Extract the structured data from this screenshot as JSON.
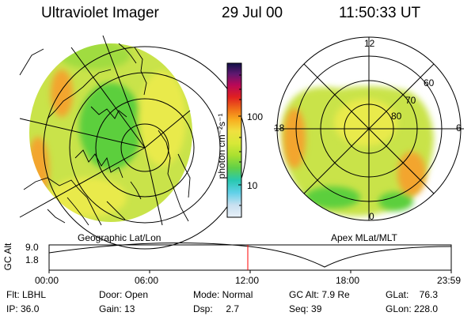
{
  "header": {
    "title": "Ultraviolet Imager",
    "date": "29 Jul 00",
    "time": "11:50:33 UT"
  },
  "left_panel": {
    "caption": "Geographic Lat/Lon"
  },
  "right_panel": {
    "caption": "Apex MLat/MLT",
    "mlt_labels": {
      "top": "12",
      "left": "18",
      "right": "6",
      "bottom": "0"
    },
    "lat_labels": [
      "60",
      "70",
      "80"
    ]
  },
  "colorbar": {
    "unit_label": "photon cm⁻²s⁻¹",
    "tick_labels": [
      "100",
      "10"
    ],
    "colors": [
      "#e8f0f8",
      "#c8e0f0",
      "#60d0e8",
      "#28c8b0",
      "#60d048",
      "#a8e030",
      "#d8e838",
      "#f0e040",
      "#f8b020",
      "#f07018",
      "#e02020",
      "#b80858",
      "#601870",
      "#101048"
    ]
  },
  "altitude_plot": {
    "ylabel": "GC Alt",
    "yticks": [
      "9.0",
      "1.8"
    ],
    "xticks": [
      "00:00",
      "06:00",
      "12:00",
      "18:00",
      "23:59"
    ],
    "marker_color": "#ff0000"
  },
  "info": {
    "flt": "Flt: LBHL",
    "ip": "IP: 36.0",
    "door": "Door: Open",
    "gain": "Gain: 13",
    "mode": "Mode: Normal",
    "dsp": "Dsp:     2.7",
    "gc_alt": "GC Alt: 7.9 Re",
    "seq": "Seq: 39",
    "glat": "GLat:    76.3",
    "glon": "GLon: 228.0"
  },
  "image_colors": {
    "background_disk": "#c9e34a",
    "emission_orange": "#f3a52e",
    "emission_green": "#5ccf3e",
    "emission_yellow": "#e9ea4c"
  }
}
